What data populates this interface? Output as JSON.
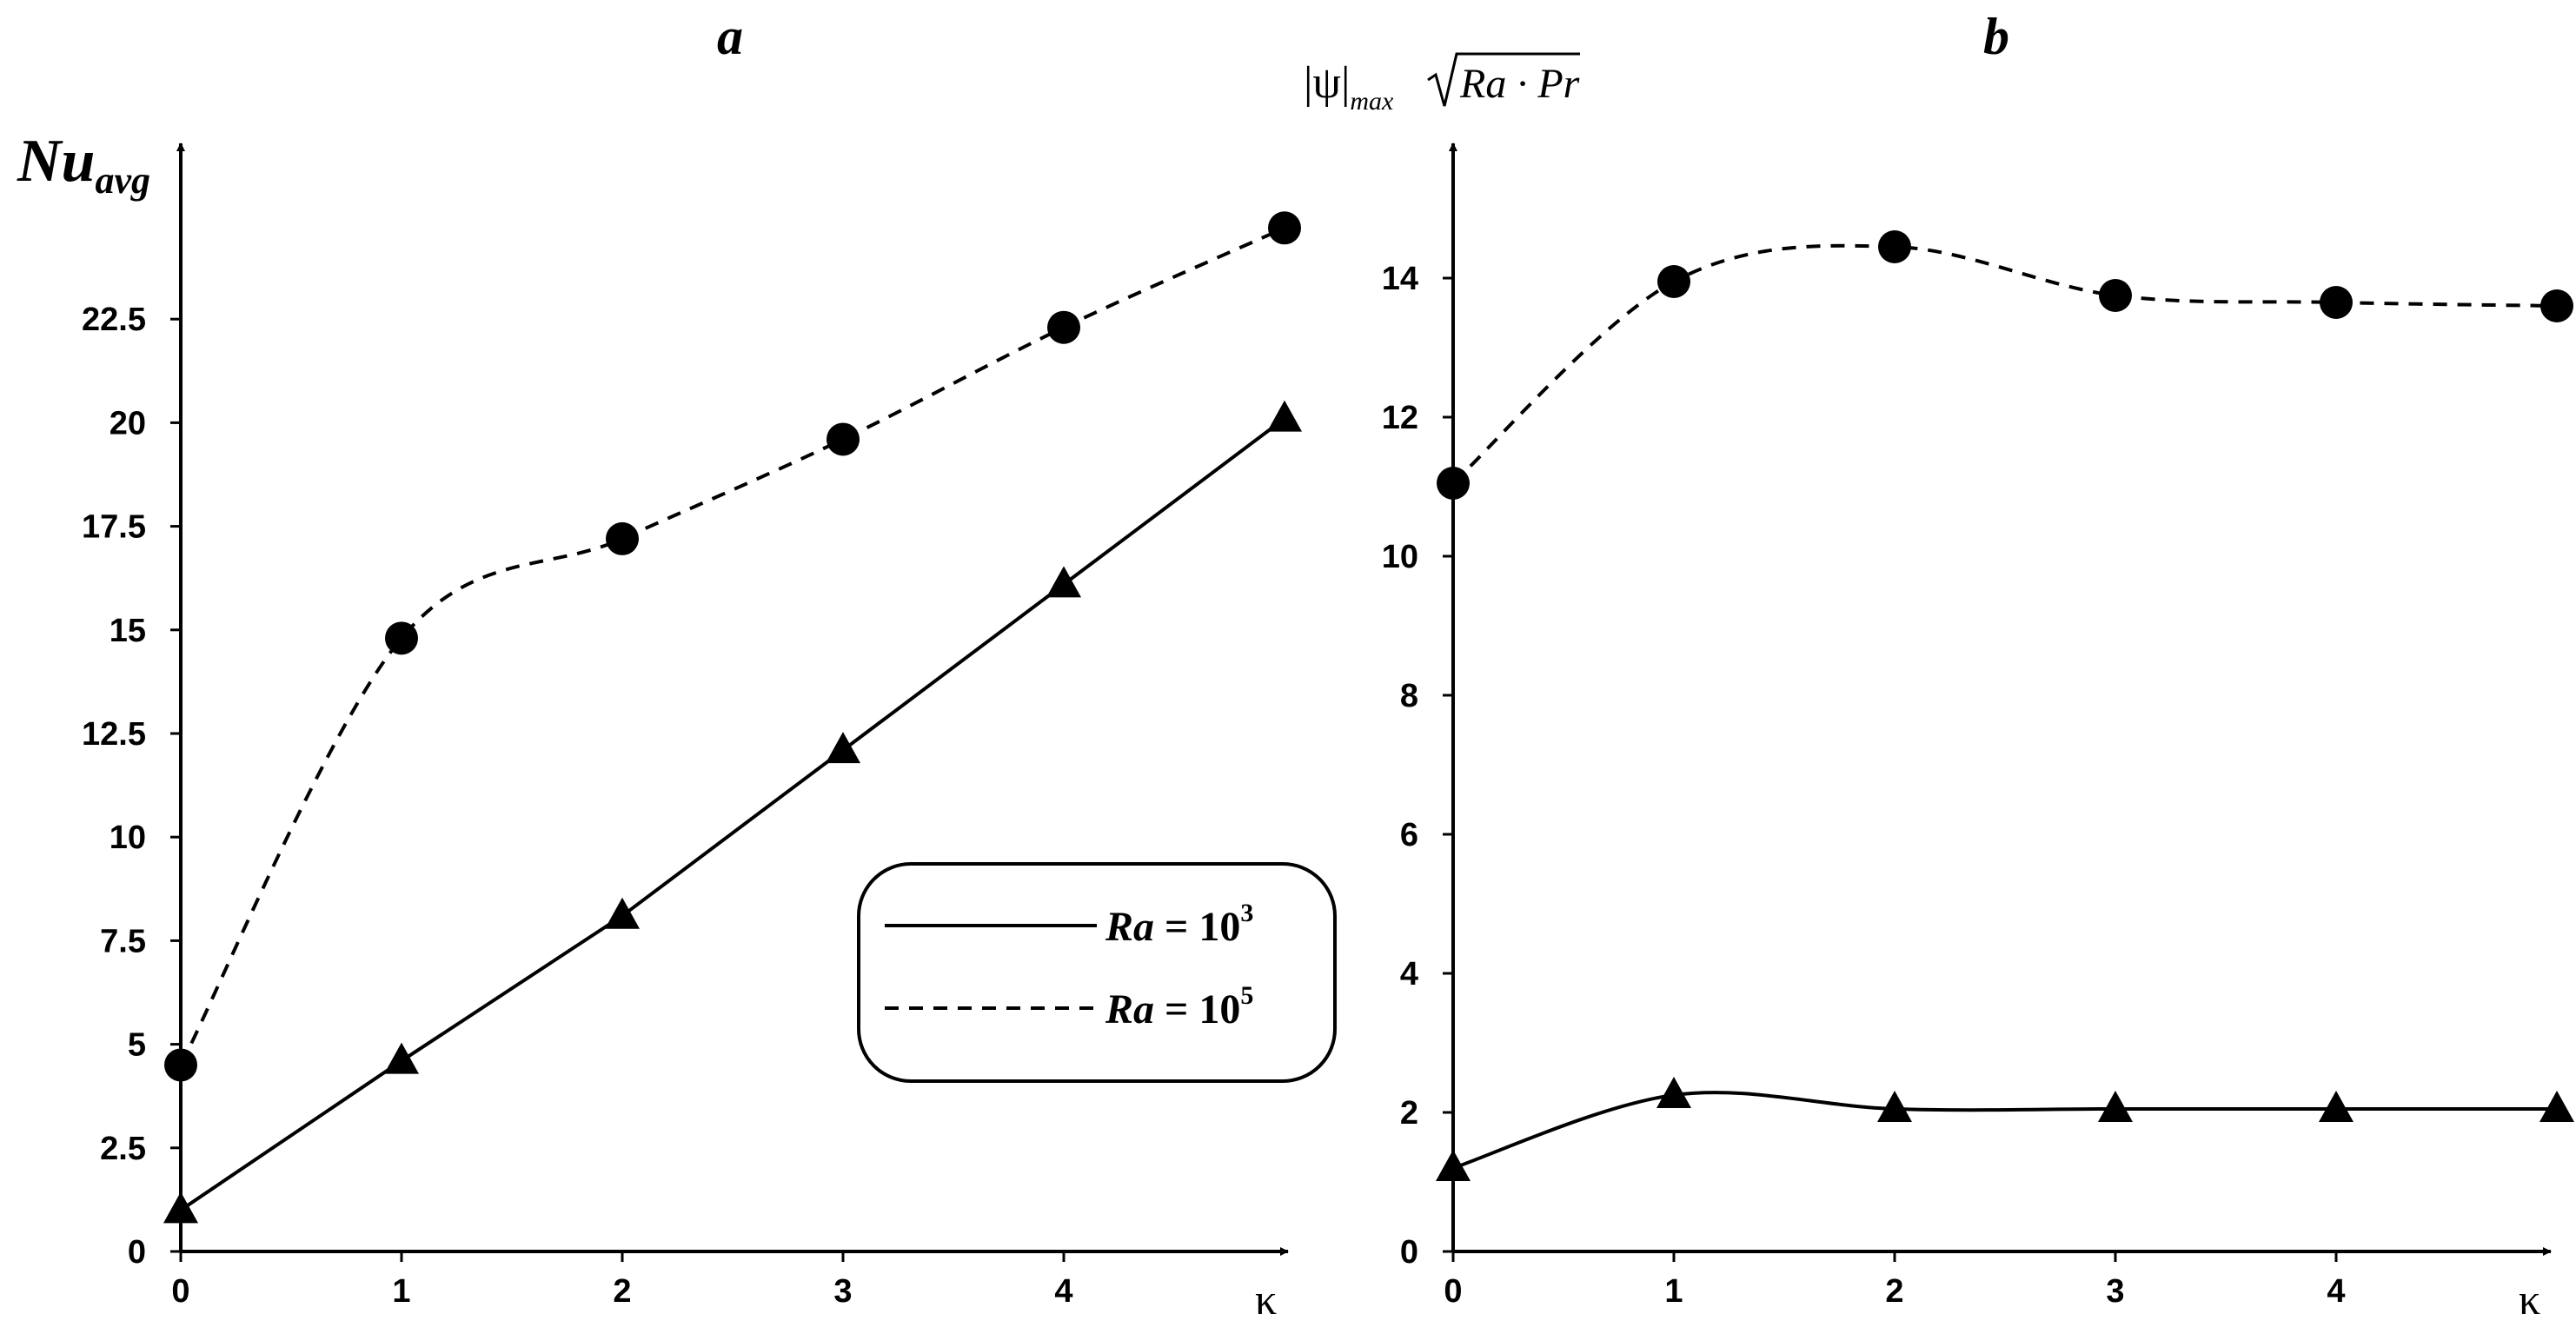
{
  "chart_data": [
    {
      "type": "line",
      "title": "a",
      "ylabel": "Nu",
      "ylabel_sub": "avg",
      "xlabel": "κ",
      "x": [
        0,
        1,
        2,
        3,
        4,
        5
      ],
      "xticks": [
        "0",
        "1",
        "2",
        "3",
        "4"
      ],
      "xlim": [
        0,
        5.05
      ],
      "ylim": [
        0,
        25
      ],
      "yticks": [
        "0",
        "2.5",
        "5",
        "7.5",
        "10",
        "12.5",
        "15",
        "17.5",
        "20",
        "22.5"
      ],
      "series": [
        {
          "name": "Ra = 10^3",
          "values": [
            1.0,
            4.6,
            8.1,
            12.1,
            16.1,
            20.1
          ],
          "marker": "triangle",
          "line": "solid"
        },
        {
          "name": "Ra = 10^5",
          "values": [
            4.5,
            14.8,
            17.2,
            19.6,
            22.3,
            24.7
          ],
          "marker": "circle",
          "line": "dashed"
        }
      ],
      "legend": {
        "placement": "lower-right",
        "entries": [
          {
            "label_main": "Ra",
            "label_eq": " = 10",
            "label_exp": "3",
            "line": "solid"
          },
          {
            "label_main": "Ra",
            "label_eq": " = 10",
            "label_exp": "5",
            "line": "dashed"
          }
        ]
      }
    },
    {
      "type": "line",
      "title": "b",
      "ylabel_psi": "|ψ|",
      "ylabel_sub": "max",
      "ylabel_root": "Ra · Pr",
      "xlabel": "κ",
      "x": [
        0,
        1,
        2,
        3,
        4,
        5
      ],
      "xticks": [
        "0",
        "1",
        "2",
        "3",
        "4"
      ],
      "xlim": [
        0,
        5.05
      ],
      "ylim": [
        0,
        15
      ],
      "yticks": [
        "0",
        "2",
        "4",
        "6",
        "8",
        "10",
        "12",
        "14"
      ],
      "series": [
        {
          "name": "Ra = 10^3",
          "values": [
            1.2,
            2.25,
            2.05,
            2.05,
            2.05,
            2.05
          ],
          "marker": "triangle",
          "line": "solid"
        },
        {
          "name": "Ra = 10^5",
          "values": [
            11.05,
            13.95,
            14.45,
            13.75,
            13.65,
            13.6
          ],
          "marker": "circle",
          "line": "dashed"
        }
      ]
    }
  ]
}
